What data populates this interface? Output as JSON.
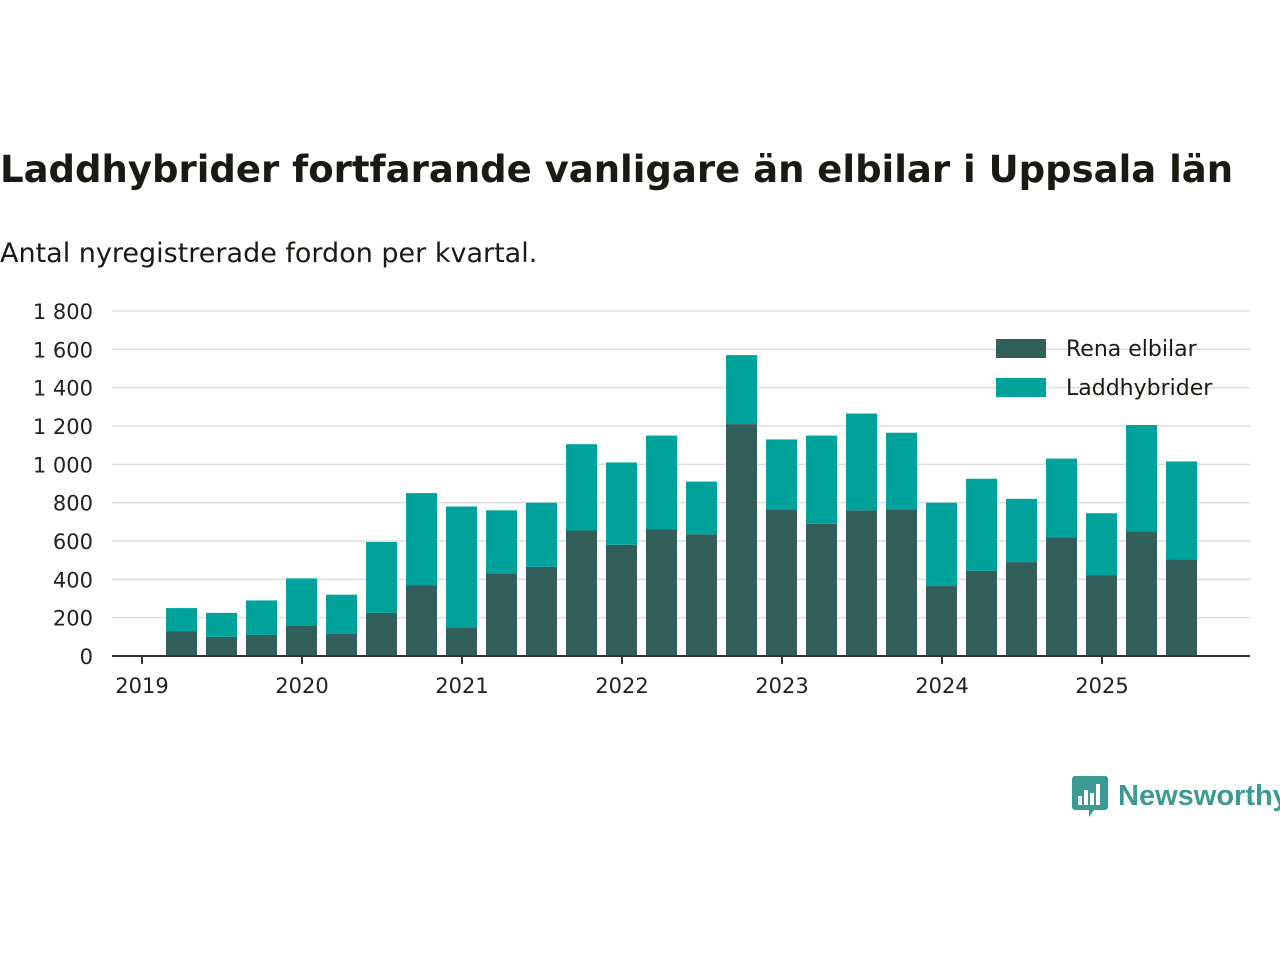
{
  "colors": {
    "elbilar": "#335f5a",
    "laddhybrider": "#00a39b",
    "grid": "#dddddd",
    "axis": "#333333",
    "brand": "#3b9a94"
  },
  "header": {
    "title": "Laddhybrider fortfarande vanligare än elbilar i Uppsala län",
    "subtitle": "Antal nyregistrerade fordon per kvartal."
  },
  "brand": {
    "name": "Newsworthy",
    "icon": "bar-chart-icon"
  },
  "chart_data": {
    "type": "bar",
    "stacked": true,
    "title": "Laddhybrider fortfarande vanligare än elbilar i Uppsala län",
    "subtitle": "Antal nyregistrerade fordon per kvartal.",
    "xlabel": "",
    "ylabel": "",
    "ylim": [
      0,
      1800
    ],
    "y_ticks": [
      0,
      200,
      400,
      600,
      800,
      1000,
      1200,
      1400,
      1600,
      1800
    ],
    "y_tick_labels": [
      "0",
      "200",
      "400",
      "600",
      "800",
      "1 000",
      "1 200",
      "1 400",
      "1 600",
      "1 800"
    ],
    "x_tick_labels": [
      "2019",
      "2020",
      "2021",
      "2022",
      "2023",
      "2024",
      "2025"
    ],
    "legend_position": "top-right",
    "categories": [
      "2019 Q2",
      "2019 Q3",
      "2019 Q4",
      "2020 Q1",
      "2020 Q2",
      "2020 Q3",
      "2020 Q4",
      "2021 Q1",
      "2021 Q2",
      "2021 Q3",
      "2021 Q4",
      "2022 Q1",
      "2022 Q2",
      "2022 Q3",
      "2022 Q4",
      "2023 Q1",
      "2023 Q2",
      "2023 Q3",
      "2023 Q4",
      "2024 Q1",
      "2024 Q2",
      "2024 Q3",
      "2024 Q4",
      "2025 Q1",
      "2025 Q2",
      "2025 Q3"
    ],
    "series": [
      {
        "name": "Rena elbilar",
        "color": "#335f5a",
        "values": [
          130,
          100,
          110,
          160,
          115,
          225,
          370,
          150,
          430,
          465,
          655,
          580,
          660,
          635,
          1210,
          765,
          690,
          760,
          765,
          365,
          445,
          490,
          620,
          420,
          650,
          505
        ]
      },
      {
        "name": "Laddhybrider",
        "color": "#00a39b",
        "values": [
          120,
          125,
          180,
          245,
          205,
          370,
          480,
          630,
          330,
          335,
          450,
          430,
          490,
          275,
          360,
          365,
          460,
          505,
          400,
          435,
          480,
          330,
          410,
          325,
          555,
          510
        ]
      }
    ]
  }
}
